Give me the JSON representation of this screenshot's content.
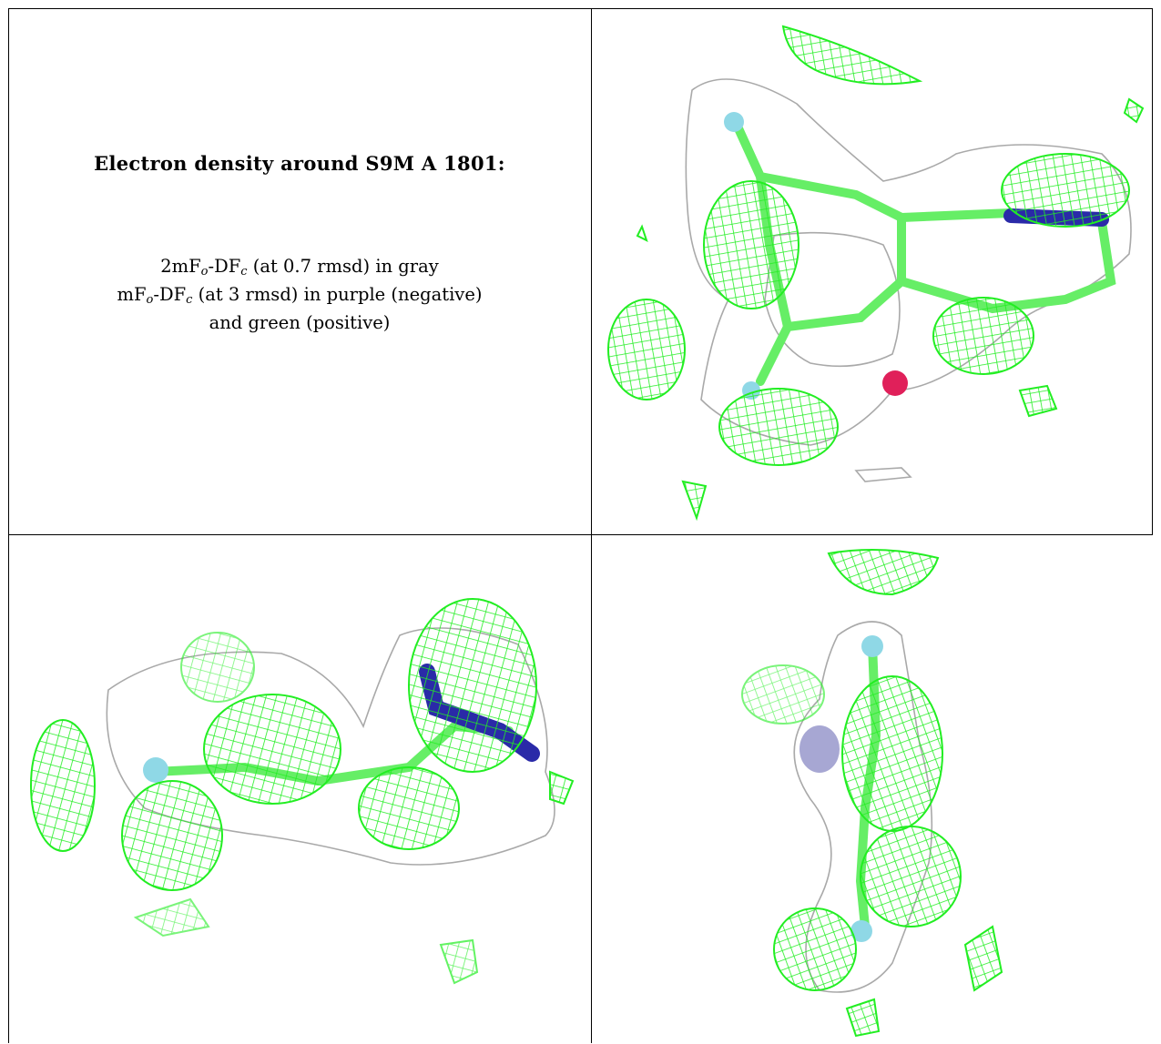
{
  "caption": {
    "title": "Electron density around S9M A 1801:",
    "line1": {
      "pre": "2mF",
      "sub1": "o",
      "mid": "-DF",
      "sub2": "c",
      "post": " (at 0.7 rmsd) in gray"
    },
    "line2": {
      "pre": "mF",
      "sub1": "o",
      "mid": "-DF",
      "sub2": "c",
      "post": " (at 3 rmsd) in purple (negative)"
    },
    "line3": "and green (positive)"
  },
  "colors": {
    "map_2fofc": "#a9a9a9",
    "map_fofc_positive": "#22ee22",
    "carbon": "#66ee66",
    "nitrogen": "#2a2aa8",
    "oxygen": "#e0205a",
    "halogen": "#8fd8e6"
  },
  "panels": [
    {
      "name": "view-top-right"
    },
    {
      "name": "view-bottom-left"
    },
    {
      "name": "view-bottom-right"
    }
  ]
}
